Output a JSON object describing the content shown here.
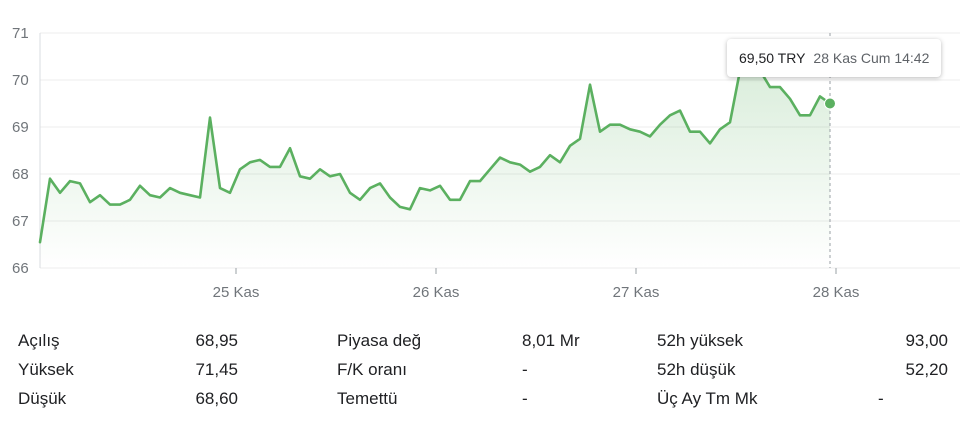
{
  "chart_data": {
    "type": "area",
    "ylim": [
      66,
      71
    ],
    "yticks": [
      "66",
      "67",
      "68",
      "69",
      "70",
      "71"
    ],
    "xticks": [
      {
        "label": "25 Kas",
        "pos": 19.6
      },
      {
        "label": "26 Kas",
        "pos": 39.6
      },
      {
        "label": "27 Kas",
        "pos": 59.6
      },
      {
        "label": "28 Kas",
        "pos": 79.6
      }
    ],
    "xlim": [
      0,
      92.0
    ],
    "grid": true,
    "series": [
      {
        "values": [
          [
            0,
            66.55
          ],
          [
            1,
            67.9
          ],
          [
            2,
            67.6
          ],
          [
            3,
            67.85
          ],
          [
            4,
            67.8
          ],
          [
            5,
            67.4
          ],
          [
            6,
            67.55
          ],
          [
            7,
            67.35
          ],
          [
            8,
            67.35
          ],
          [
            9,
            67.45
          ],
          [
            10,
            67.75
          ],
          [
            11,
            67.55
          ],
          [
            12,
            67.5
          ],
          [
            13,
            67.7
          ],
          [
            14,
            67.6
          ],
          [
            15,
            67.55
          ],
          [
            16,
            67.5
          ],
          [
            17,
            69.2
          ],
          [
            18,
            67.7
          ],
          [
            19,
            67.6
          ],
          [
            20,
            68.1
          ],
          [
            21,
            68.25
          ],
          [
            22,
            68.3
          ],
          [
            23,
            68.15
          ],
          [
            24,
            68.15
          ],
          [
            25,
            68.55
          ],
          [
            26,
            67.95
          ],
          [
            27,
            67.9
          ],
          [
            28,
            68.1
          ],
          [
            29,
            67.95
          ],
          [
            30,
            68.0
          ],
          [
            31,
            67.6
          ],
          [
            32,
            67.45
          ],
          [
            33,
            67.7
          ],
          [
            34,
            67.8
          ],
          [
            35,
            67.5
          ],
          [
            36,
            67.3
          ],
          [
            37,
            67.25
          ],
          [
            38,
            67.7
          ],
          [
            39,
            67.65
          ],
          [
            40,
            67.75
          ],
          [
            41,
            67.45
          ],
          [
            42,
            67.45
          ],
          [
            43,
            67.85
          ],
          [
            44,
            67.85
          ],
          [
            45,
            68.1
          ],
          [
            46,
            68.35
          ],
          [
            47,
            68.25
          ],
          [
            48,
            68.2
          ],
          [
            49,
            68.05
          ],
          [
            50,
            68.15
          ],
          [
            51,
            68.4
          ],
          [
            52,
            68.25
          ],
          [
            53,
            68.6
          ],
          [
            54,
            68.75
          ],
          [
            55,
            69.9
          ],
          [
            56,
            68.9
          ],
          [
            57,
            69.05
          ],
          [
            58,
            69.05
          ],
          [
            59,
            68.95
          ],
          [
            60,
            68.9
          ],
          [
            61,
            68.8
          ],
          [
            62,
            69.05
          ],
          [
            63,
            69.25
          ],
          [
            64,
            69.35
          ],
          [
            65,
            68.9
          ],
          [
            66,
            68.9
          ],
          [
            67,
            68.65
          ],
          [
            68,
            68.95
          ],
          [
            69,
            69.1
          ],
          [
            70,
            70.2
          ],
          [
            71,
            70.2
          ],
          [
            72,
            70.2
          ],
          [
            73,
            69.85
          ],
          [
            74,
            69.85
          ],
          [
            75,
            69.6
          ],
          [
            76,
            69.25
          ],
          [
            77,
            69.25
          ],
          [
            78,
            69.65
          ],
          [
            79,
            69.5
          ]
        ],
        "color": "#5bb060"
      }
    ],
    "last": {
      "x": 79,
      "y": 69.5
    }
  },
  "tooltip": {
    "price": "69,50 TRY",
    "when": "28 Kas Cum 14:42"
  },
  "stats": {
    "columns": [
      [
        {
          "label": "Açılış",
          "value": "68,95"
        },
        {
          "label": "Yüksek",
          "value": "71,45"
        },
        {
          "label": "Düşük",
          "value": "68,60"
        }
      ],
      [
        {
          "label": "Piyasa değ",
          "value": "8,01 Mr"
        },
        {
          "label": "F/K oranı",
          "value": "-"
        },
        {
          "label": "Temettü",
          "value": "-"
        }
      ],
      [
        {
          "label": "52h yüksek",
          "value": "93,00"
        },
        {
          "label": "52h düşük",
          "value": "52,20"
        },
        {
          "label": "Üç Ay Tm Mk",
          "value": "-"
        }
      ]
    ]
  }
}
